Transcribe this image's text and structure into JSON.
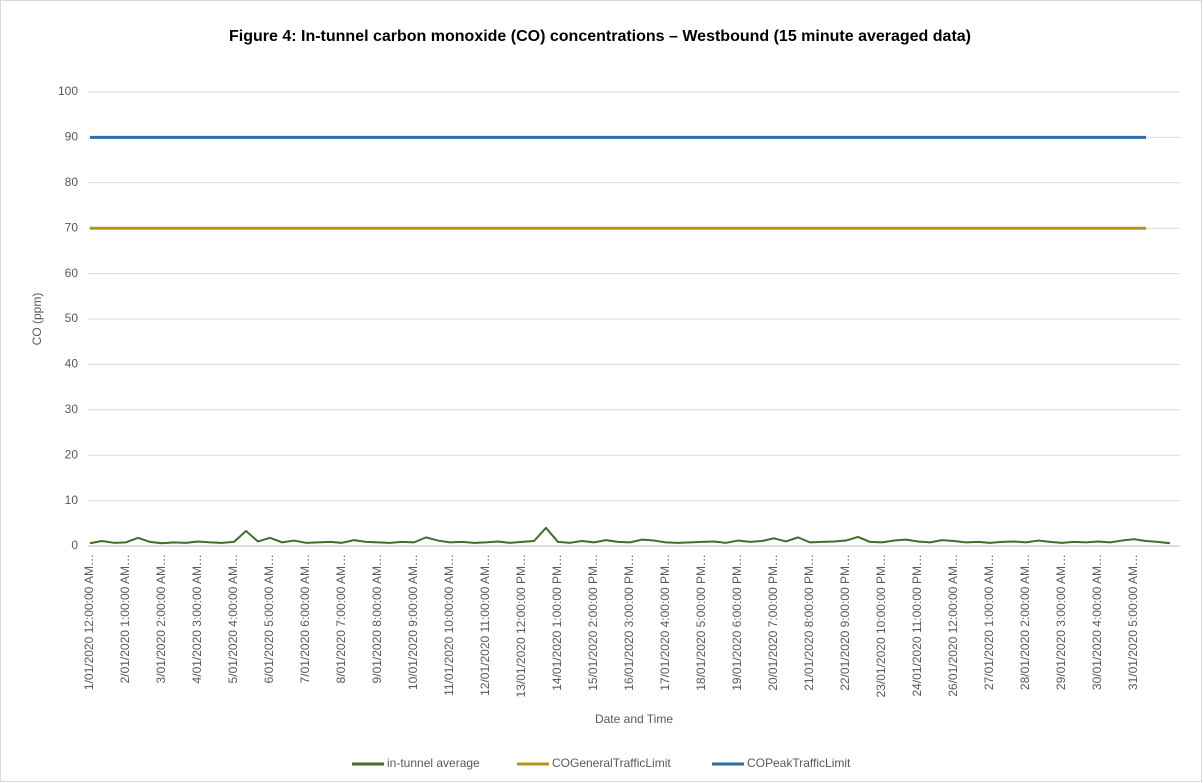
{
  "chart_data": {
    "type": "line",
    "title": "Figure 4: In-tunnel carbon monoxide (CO) concentrations – Westbound (15 minute averaged data)",
    "x_label": "Date and Time",
    "y_label": "CO (ppm)",
    "categories": [
      "1/01/2020 12:00:00 AM…",
      null,
      null,
      "2/01/2020 1:00:00 AM…",
      null,
      null,
      "3/01/2020 2:00:00 AM…",
      null,
      null,
      "4/01/2020 3:00:00 AM…",
      null,
      null,
      "5/01/2020 4:00:00 AM…",
      null,
      null,
      "6/01/2020 5:00:00 AM…",
      null,
      null,
      "7/01/2020 6:00:00 AM…",
      null,
      null,
      "8/01/2020 7:00:00 AM…",
      null,
      null,
      "9/01/2020 8:00:00 AM…",
      null,
      null,
      "10/01/2020 9:00:00 AM…",
      null,
      null,
      "11/01/2020 10:00:00 AM…",
      null,
      null,
      "12/01/2020 11:00:00 AM…",
      null,
      null,
      "13/01/2020 12:00:00 PM…",
      null,
      null,
      "14/01/2020 1:00:00 PM…",
      null,
      null,
      "15/01/2020 2:00:00 PM…",
      null,
      null,
      "16/01/2020 3:00:00 PM…",
      null,
      null,
      "17/01/2020 4:00:00 PM…",
      null,
      null,
      "18/01/2020 5:00:00 PM…",
      null,
      null,
      "19/01/2020 6:00:00 PM…",
      null,
      null,
      "20/01/2020 7:00:00 PM…",
      null,
      null,
      "21/01/2020 8:00:00 PM…",
      null,
      null,
      "22/01/2020 9:00:00 PM…",
      null,
      null,
      "23/01/2020 10:00:00 PM…",
      null,
      null,
      "24/01/2020 11:00:00 PM…",
      null,
      null,
      "26/01/2020 12:00:00 AM…",
      null,
      null,
      "27/01/2020 1:00:00 AM…",
      null,
      null,
      "28/01/2020 2:00:00 AM…",
      null,
      null,
      "29/01/2020 3:00:00 AM…",
      null,
      null,
      "30/01/2020 4:00:00 AM…",
      null,
      null,
      "31/01/2020 5:00:00 AM…",
      null,
      null,
      null
    ],
    "series": [
      {
        "name": "in-tunnel average",
        "color": "#3f6e2a",
        "values": [
          0.6,
          1.1,
          0.7,
          0.8,
          1.8,
          0.9,
          0.6,
          0.8,
          0.7,
          1.0,
          0.8,
          0.7,
          0.9,
          3.3,
          1.0,
          1.8,
          0.8,
          1.2,
          0.7,
          0.8,
          0.9,
          0.7,
          1.3,
          0.9,
          0.8,
          0.7,
          0.9,
          0.8,
          1.9,
          1.2,
          0.8,
          0.9,
          0.7,
          0.8,
          1.0,
          0.7,
          0.9,
          1.1,
          4.0,
          0.9,
          0.7,
          1.1,
          0.8,
          1.3,
          0.9,
          0.8,
          1.4,
          1.2,
          0.8,
          0.7,
          0.8,
          0.9,
          1.0,
          0.7,
          1.2,
          0.9,
          1.1,
          1.7,
          1.0,
          1.9,
          0.8,
          0.9,
          1.0,
          1.2,
          2.0,
          0.9,
          0.8,
          1.2,
          1.4,
          1.0,
          0.8,
          1.3,
          1.1,
          0.8,
          0.9,
          0.7,
          0.9,
          1.0,
          0.8,
          1.2,
          0.9,
          0.7,
          0.9,
          0.8,
          1.0,
          0.8,
          1.2,
          1.5,
          1.1,
          0.9,
          0.6
        ]
      },
      {
        "name": "COGeneralTrafficLimit",
        "color": "#b8901c",
        "values": [
          70,
          70,
          70,
          70,
          70,
          70,
          70,
          70,
          70,
          70,
          70,
          70,
          70,
          70,
          70,
          70,
          70,
          70,
          70,
          70,
          70,
          70,
          70,
          70,
          70,
          70,
          70,
          70,
          70,
          70,
          70,
          70,
          70,
          70,
          70,
          70,
          70,
          70,
          70,
          70,
          70,
          70,
          70,
          70,
          70,
          70,
          70,
          70,
          70,
          70,
          70,
          70,
          70,
          70,
          70,
          70,
          70,
          70,
          70,
          70,
          70,
          70,
          70,
          70,
          70,
          70,
          70,
          70,
          70,
          70,
          70,
          70,
          70,
          70,
          70,
          70,
          70,
          70,
          70,
          70,
          70,
          70,
          70,
          70,
          70,
          70,
          70,
          70,
          70,
          null,
          null
        ]
      },
      {
        "name": "COPeakTrafficLimit",
        "color": "#2e6ca4",
        "values": [
          90,
          90,
          90,
          90,
          90,
          90,
          90,
          90,
          90,
          90,
          90,
          90,
          90,
          90,
          90,
          90,
          90,
          90,
          90,
          90,
          90,
          90,
          90,
          90,
          90,
          90,
          90,
          90,
          90,
          90,
          90,
          90,
          90,
          90,
          90,
          90,
          90,
          90,
          90,
          90,
          90,
          90,
          90,
          90,
          90,
          90,
          90,
          90,
          90,
          90,
          90,
          90,
          90,
          90,
          90,
          90,
          90,
          90,
          90,
          90,
          90,
          90,
          90,
          90,
          90,
          90,
          90,
          90,
          90,
          90,
          90,
          90,
          90,
          90,
          90,
          90,
          90,
          90,
          90,
          90,
          90,
          90,
          90,
          90,
          90,
          90,
          90,
          90,
          90,
          null,
          null
        ]
      }
    ],
    "ylim": [
      0,
      100
    ],
    "yticks": [
      0,
      10,
      20,
      30,
      40,
      50,
      60,
      70,
      80,
      90,
      100
    ],
    "grid": true,
    "legend": "bottom"
  }
}
